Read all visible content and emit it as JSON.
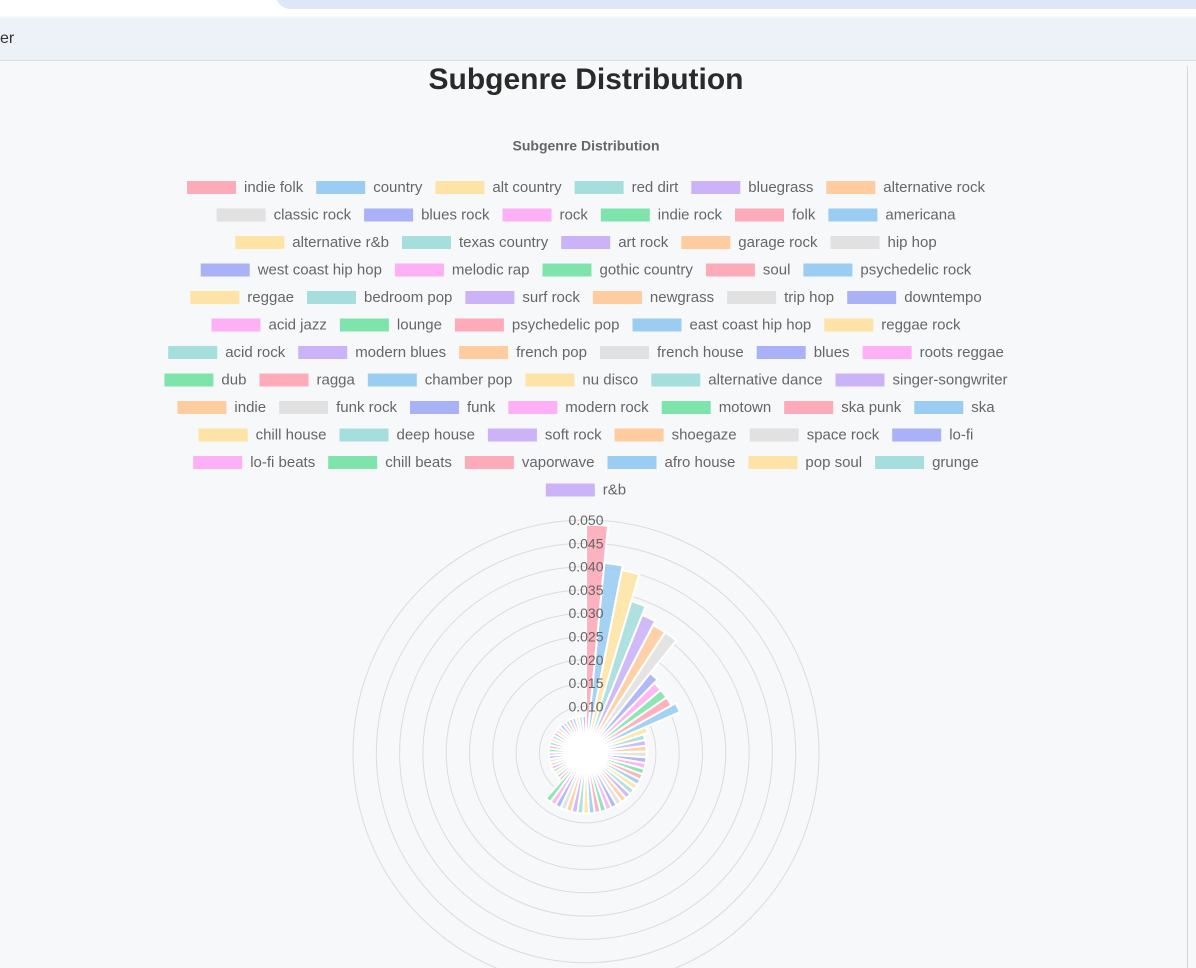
{
  "toolbar": {
    "visible_fragment": "er"
  },
  "page": {
    "title": "Subgenre Distribution"
  },
  "chart_data": {
    "type": "polarArea",
    "title": "Subgenre Distribution",
    "legend_position": "top",
    "r_range": [
      0,
      0.05
    ],
    "r_ticks": [
      "0.050",
      "0.045",
      "0.040",
      "0.035",
      "0.030",
      "0.025",
      "0.020",
      "0.015",
      "0.010"
    ],
    "grid": true,
    "palette": [
      "#fdaab9",
      "#9bcdf2",
      "#fde4a6",
      "#a6dedd",
      "#ccb2f7",
      "#fecc9f",
      "#e1e1e1",
      "#a9b2f6",
      "#fdb0f5",
      "#7fe4ac"
    ],
    "labels": [
      "indie folk",
      "country",
      "alt country",
      "red dirt",
      "bluegrass",
      "alternative rock",
      "classic rock",
      "blues rock",
      "rock",
      "indie rock",
      "folk",
      "americana",
      "alternative r&b",
      "texas country",
      "art rock",
      "garage rock",
      "hip hop",
      "west coast hip hop",
      "melodic rap",
      "gothic country",
      "soul",
      "psychedelic rock",
      "reggae",
      "bedroom pop",
      "surf rock",
      "newgrass",
      "trip hop",
      "downtempo",
      "acid jazz",
      "lounge",
      "psychedelic pop",
      "east coast hip hop",
      "reggae rock",
      "acid rock",
      "modern blues",
      "french pop",
      "french house",
      "blues",
      "roots reggae",
      "dub",
      "ragga",
      "chamber pop",
      "nu disco",
      "alternative dance",
      "singer-songwriter",
      "indie",
      "funk rock",
      "funk",
      "modern rock",
      "motown",
      "ska punk",
      "ska",
      "chill house",
      "deep house",
      "soft rock",
      "shoegaze",
      "space rock",
      "lo-fi",
      "lo-fi beats",
      "chill beats",
      "vaporwave",
      "afro house",
      "pop soul",
      "grunge",
      "r&b"
    ],
    "values": [
      0.049,
      0.041,
      0.04,
      0.034,
      0.032,
      0.031,
      0.031,
      0.022,
      0.021,
      0.021,
      0.021,
      0.022,
      0.014,
      0.013,
      0.013,
      0.013,
      0.013,
      0.013,
      0.013,
      0.013,
      0.013,
      0.013,
      0.013,
      0.013,
      0.013,
      0.013,
      0.013,
      0.013,
      0.013,
      0.013,
      0.013,
      0.013,
      0.013,
      0.013,
      0.013,
      0.013,
      0.013,
      0.013,
      0.013,
      0.013,
      0.008,
      0.008,
      0.008,
      0.008,
      0.008,
      0.008,
      0.008,
      0.008,
      0.008,
      0.008,
      0.008,
      0.008,
      0.008,
      0.008,
      0.008,
      0.008,
      0.008,
      0.008,
      0.008,
      0.008,
      0.008,
      0.008,
      0.008,
      0.008,
      0.008
    ]
  }
}
